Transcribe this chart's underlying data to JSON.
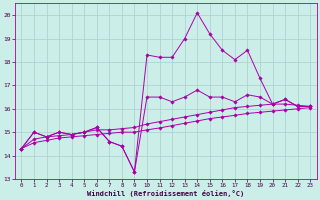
{
  "xlabel": "Windchill (Refroidissement éolien,°C)",
  "xlim": [
    -0.5,
    23.5
  ],
  "ylim": [
    13,
    20.5
  ],
  "yticks": [
    13,
    14,
    15,
    16,
    17,
    18,
    19,
    20
  ],
  "xticks": [
    0,
    1,
    2,
    3,
    4,
    5,
    6,
    7,
    8,
    9,
    10,
    11,
    12,
    13,
    14,
    15,
    16,
    17,
    18,
    19,
    20,
    21,
    22,
    23
  ],
  "bg_color": "#cceee8",
  "grid_color": "#aacccc",
  "line_color": "#aa00aa",
  "series1": [
    14.3,
    15.0,
    14.8,
    15.0,
    14.9,
    15.0,
    15.2,
    14.6,
    14.4,
    13.3,
    18.3,
    18.2,
    18.2,
    19.0,
    20.1,
    19.2,
    18.5,
    18.1,
    18.5,
    17.3,
    16.2,
    16.4,
    16.1,
    16.1
  ],
  "series2": [
    14.3,
    15.0,
    14.8,
    15.0,
    14.9,
    15.0,
    15.2,
    14.6,
    14.4,
    13.3,
    16.5,
    16.5,
    16.3,
    16.5,
    16.8,
    16.5,
    16.5,
    16.3,
    16.6,
    16.5,
    16.2,
    16.4,
    16.1,
    16.1
  ],
  "series3": [
    14.3,
    14.7,
    14.8,
    14.85,
    14.9,
    15.0,
    15.1,
    15.1,
    15.15,
    15.2,
    15.35,
    15.45,
    15.55,
    15.65,
    15.75,
    15.85,
    15.95,
    16.05,
    16.1,
    16.15,
    16.2,
    16.2,
    16.15,
    16.1
  ],
  "series4": [
    14.3,
    14.55,
    14.65,
    14.75,
    14.8,
    14.85,
    14.9,
    14.95,
    15.0,
    15.0,
    15.1,
    15.18,
    15.28,
    15.38,
    15.48,
    15.58,
    15.65,
    15.72,
    15.8,
    15.85,
    15.9,
    15.95,
    16.0,
    16.05
  ]
}
